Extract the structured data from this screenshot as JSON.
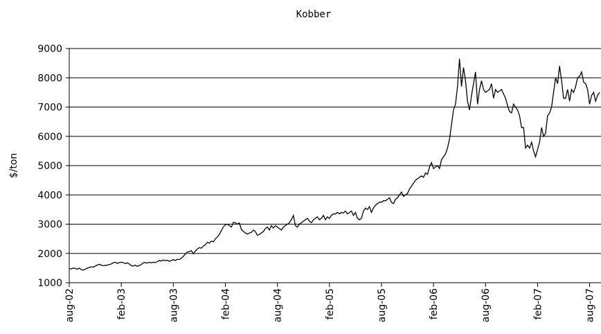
{
  "chart_data": {
    "type": "line",
    "title": "Kobber",
    "y_label": "$/ton",
    "color": "#000000",
    "grid": true,
    "ylim": [
      1000,
      9000
    ],
    "yticks": [
      1000,
      2000,
      3000,
      4000,
      5000,
      6000,
      7000,
      8000,
      9000
    ],
    "categories": [
      "aug-02",
      null,
      null,
      null,
      null,
      null,
      null,
      null,
      null,
      null,
      null,
      null,
      null,
      null,
      null,
      null,
      null,
      null,
      null,
      null,
      null,
      null,
      null,
      null,
      null,
      null,
      "feb-03",
      null,
      null,
      null,
      null,
      null,
      null,
      null,
      null,
      null,
      null,
      null,
      null,
      null,
      null,
      null,
      null,
      null,
      null,
      null,
      null,
      null,
      null,
      null,
      null,
      null,
      "aug-03",
      null,
      null,
      null,
      null,
      null,
      null,
      null,
      null,
      null,
      null,
      null,
      null,
      null,
      null,
      null,
      null,
      null,
      null,
      null,
      null,
      null,
      null,
      null,
      null,
      null,
      "feb-04",
      null,
      null,
      null,
      null,
      null,
      null,
      null,
      null,
      null,
      null,
      null,
      null,
      null,
      null,
      null,
      null,
      null,
      null,
      null,
      null,
      null,
      null,
      null,
      null,
      null,
      "aug-04",
      null,
      null,
      null,
      null,
      null,
      null,
      null,
      null,
      null,
      null,
      null,
      null,
      null,
      null,
      null,
      null,
      null,
      null,
      null,
      null,
      null,
      null,
      null,
      null,
      null,
      "feb-05",
      null,
      null,
      null,
      null,
      null,
      null,
      null,
      null,
      null,
      null,
      null,
      null,
      null,
      null,
      null,
      null,
      null,
      null,
      null,
      null,
      null,
      null,
      null,
      null,
      null,
      "aug-05",
      null,
      null,
      null,
      null,
      null,
      null,
      null,
      null,
      null,
      null,
      null,
      null,
      null,
      null,
      null,
      null,
      null,
      null,
      null,
      null,
      null,
      null,
      null,
      null,
      null,
      "feb-06",
      null,
      null,
      null,
      null,
      null,
      null,
      null,
      null,
      null,
      null,
      null,
      null,
      null,
      null,
      null,
      null,
      null,
      null,
      null,
      null,
      null,
      null,
      null,
      null,
      null,
      "aug-06",
      null,
      null,
      null,
      null,
      null,
      null,
      null,
      null,
      null,
      null,
      null,
      null,
      null,
      null,
      null,
      null,
      null,
      null,
      null,
      null,
      null,
      null,
      null,
      null,
      null,
      "feb-07",
      null,
      null,
      null,
      null,
      null,
      null,
      null,
      null,
      null,
      null,
      null,
      null,
      null,
      null,
      null,
      null,
      null,
      null,
      null,
      null,
      null,
      null,
      null,
      null,
      null,
      "aug-07",
      null,
      null,
      null,
      null,
      null
    ],
    "values": [
      1480,
      1470,
      1500,
      1490,
      1460,
      1500,
      1450,
      1430,
      1460,
      1500,
      1520,
      1550,
      1530,
      1570,
      1600,
      1630,
      1600,
      1580,
      1590,
      1600,
      1620,
      1640,
      1680,
      1700,
      1660,
      1690,
      1700,
      1690,
      1650,
      1680,
      1640,
      1580,
      1570,
      1600,
      1560,
      1590,
      1620,
      1680,
      1690,
      1670,
      1700,
      1680,
      1700,
      1690,
      1720,
      1760,
      1740,
      1780,
      1750,
      1770,
      1730,
      1760,
      1790,
      1760,
      1800,
      1790,
      1840,
      1900,
      1980,
      2050,
      2060,
      2100,
      1990,
      2080,
      2150,
      2200,
      2180,
      2250,
      2300,
      2380,
      2350,
      2420,
      2400,
      2500,
      2560,
      2650,
      2780,
      2900,
      2980,
      3000,
      2950,
      2900,
      3060,
      3050,
      3000,
      3040,
      2820,
      2750,
      2700,
      2660,
      2700,
      2720,
      2800,
      2750,
      2620,
      2650,
      2700,
      2750,
      2850,
      2900,
      2800,
      2950,
      2870,
      2950,
      2900,
      2850,
      2800,
      2900,
      2950,
      3000,
      3050,
      3150,
      3300,
      2950,
      2900,
      3000,
      3050,
      3100,
      3150,
      3200,
      3100,
      3050,
      3150,
      3200,
      3250,
      3150,
      3200,
      3300,
      3150,
      3250,
      3200,
      3300,
      3350,
      3350,
      3400,
      3350,
      3400,
      3380,
      3450,
      3350,
      3400,
      3450,
      3300,
      3400,
      3200,
      3150,
      3200,
      3450,
      3550,
      3500,
      3600,
      3400,
      3550,
      3650,
      3700,
      3750,
      3750,
      3800,
      3800,
      3850,
      3900,
      3750,
      3700,
      3850,
      3900,
      4000,
      4100,
      3950,
      4000,
      4050,
      4200,
      4300,
      4400,
      4500,
      4550,
      4600,
      4650,
      4600,
      4750,
      4700,
      4950,
      5100,
      4900,
      4950,
      5000,
      4900,
      5200,
      5300,
      5400,
      5600,
      5900,
      6400,
      6900,
      7100,
      7700,
      8650,
      7700,
      8350,
      7900,
      7200,
      6900,
      7400,
      7800,
      8200,
      7100,
      7600,
      7900,
      7600,
      7500,
      7550,
      7600,
      7800,
      7300,
      7600,
      7500,
      7550,
      7600,
      7450,
      7300,
      7050,
      6850,
      6800,
      7100,
      7000,
      6900,
      6700,
      6300,
      6300,
      5600,
      5700,
      5600,
      5800,
      5500,
      5300,
      5550,
      5800,
      6300,
      6000,
      6100,
      6700,
      6800,
      7000,
      7500,
      8000,
      7800,
      8400,
      7900,
      7300,
      7300,
      7600,
      7200,
      7600,
      7500,
      7700,
      8000,
      8050,
      8200,
      7850,
      7800,
      7600,
      7100,
      7400,
      7500,
      7200,
      7400,
      7500
    ]
  }
}
